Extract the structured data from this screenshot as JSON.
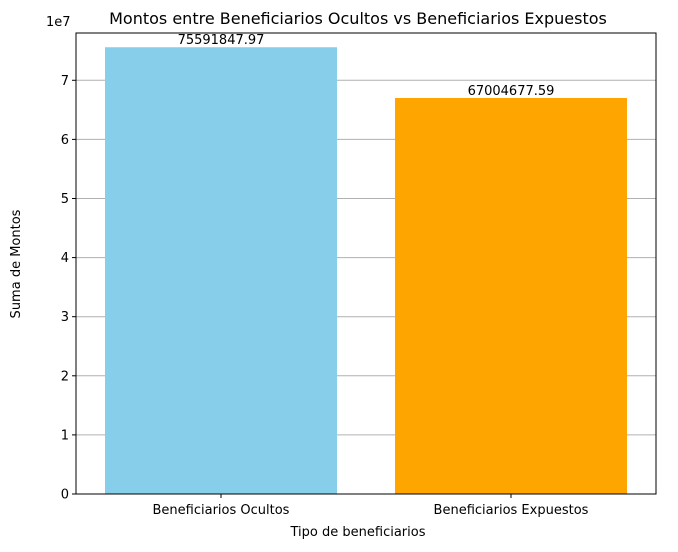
{
  "chart_data": {
    "type": "bar",
    "title": "Montos entre Beneficiarios Ocultos vs Beneficiarios Expuestos",
    "xlabel": "Tipo de beneficiarios",
    "ylabel": "Suma de Montos",
    "y_offset_label": "1e7",
    "y_scale": 10000000,
    "ylim": [
      0,
      78000000
    ],
    "yticks": [
      0,
      10000000,
      20000000,
      30000000,
      40000000,
      50000000,
      60000000,
      70000000
    ],
    "ytick_labels": [
      "0",
      "1",
      "2",
      "3",
      "4",
      "5",
      "6",
      "7"
    ],
    "categories": [
      "Beneficiarios Ocultos",
      "Beneficiarios Expuestos"
    ],
    "values": [
      75591847.97,
      67004677.59
    ],
    "value_labels": [
      "75591847.97",
      "67004677.59"
    ],
    "colors": [
      "#87ceeb",
      "#ffa500"
    ],
    "grid": "horizontal",
    "grid_color": "#b0b0b0",
    "legend": "none"
  }
}
